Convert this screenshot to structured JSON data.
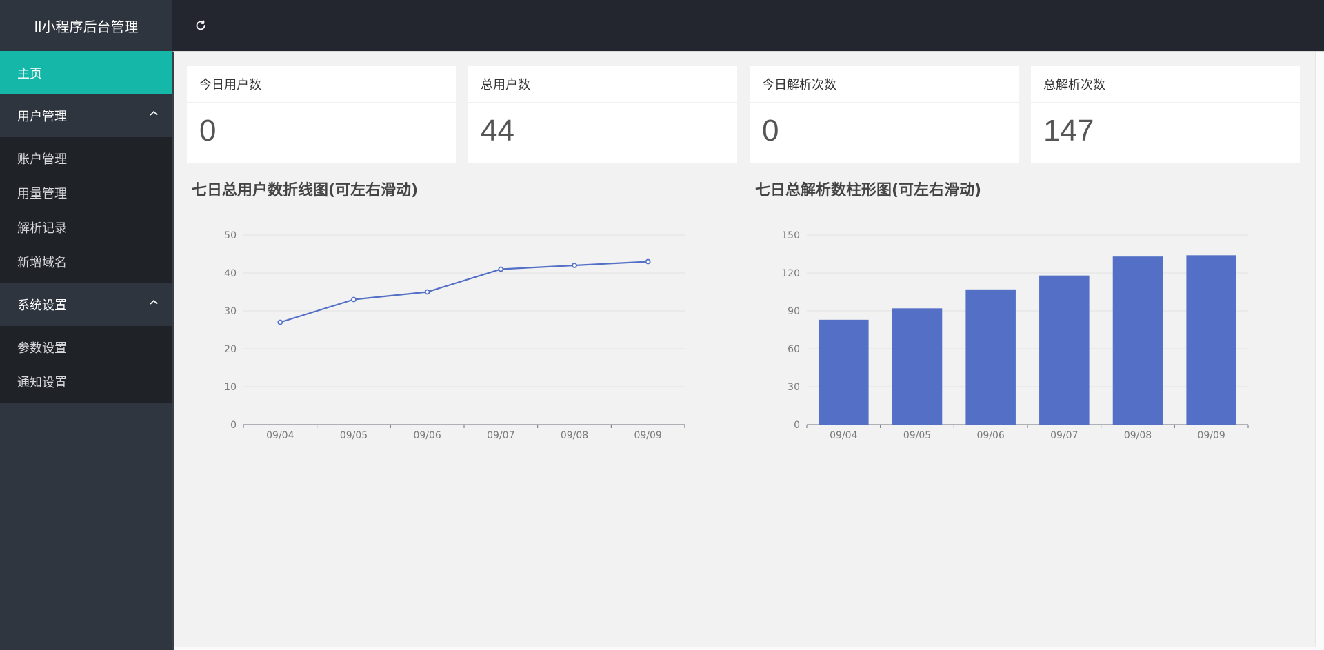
{
  "header": {
    "brand": "ll小程序后台管理",
    "refresh_icon": "refresh-icon"
  },
  "sidebar": {
    "home": "主页",
    "groups": [
      {
        "label": "用户管理",
        "items": [
          "账户管理",
          "用量管理",
          "解析记录",
          "新增域名"
        ]
      },
      {
        "label": "系统设置",
        "items": [
          "参数设置",
          "通知设置"
        ]
      }
    ]
  },
  "stats": [
    {
      "label": "今日用户数",
      "value": "0"
    },
    {
      "label": "总用户数",
      "value": "44"
    },
    {
      "label": "今日解析次数",
      "value": "0"
    },
    {
      "label": "总解析次数",
      "value": "147"
    }
  ],
  "colors": {
    "accent": "#15b8a8",
    "series": "#5470c6"
  },
  "chart_data": [
    {
      "type": "line",
      "title": "七日总用户数折线图(可左右滑动)",
      "categories": [
        "09/04",
        "09/05",
        "09/06",
        "09/07",
        "09/08",
        "09/09"
      ],
      "values": [
        27,
        33,
        35,
        41,
        42,
        43
      ],
      "ylim": [
        0,
        50
      ],
      "yticks": [
        0,
        10,
        20,
        30,
        40,
        50
      ],
      "grid": true
    },
    {
      "type": "bar",
      "title": "七日总解析数柱形图(可左右滑动)",
      "categories": [
        "09/04",
        "09/05",
        "09/06",
        "09/07",
        "09/08",
        "09/09"
      ],
      "values": [
        83,
        92,
        107,
        118,
        133,
        134
      ],
      "ylim": [
        0,
        150
      ],
      "yticks": [
        0,
        30,
        60,
        90,
        120,
        150
      ],
      "grid": true
    }
  ]
}
